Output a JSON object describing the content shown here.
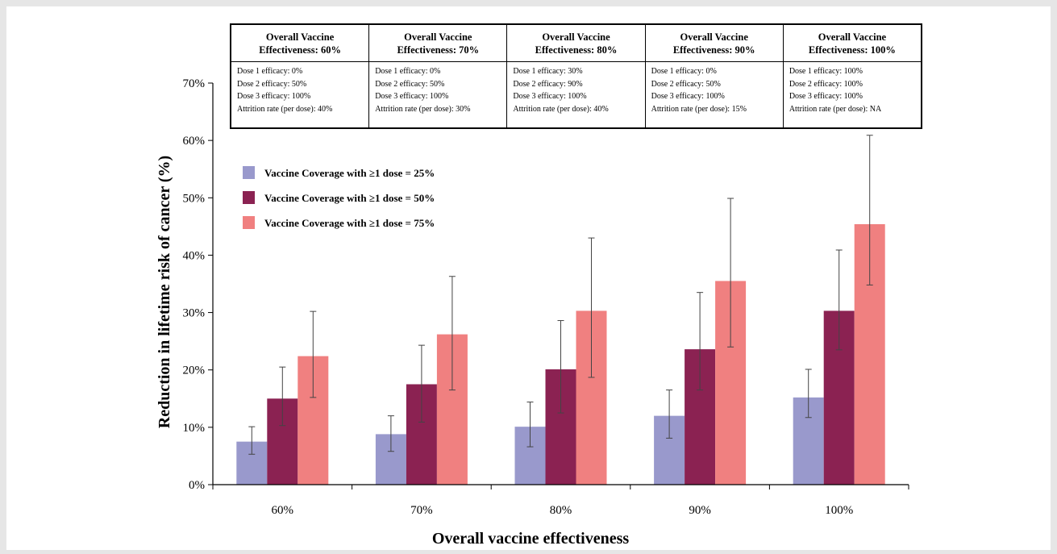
{
  "chart_data": {
    "type": "bar",
    "categories": [
      "60%",
      "70%",
      "80%",
      "90%",
      "100%"
    ],
    "xlabel": "Overall vaccine effectiveness",
    "ylabel": "Reduction in lifetime risk of cancer (%)",
    "ylim": [
      0,
      70
    ],
    "yticks": [
      "0%",
      "10%",
      "20%",
      "30%",
      "40%",
      "50%",
      "60%",
      "70%"
    ],
    "grid": false,
    "legend_placement": "upper-left",
    "series": [
      {
        "name": "Vaccine Coverage with ≥1 dose = 25%",
        "color": "#9999cc",
        "values": [
          7.5,
          8.8,
          10.1,
          12.0,
          15.2
        ],
        "err_low": [
          5.3,
          5.8,
          6.6,
          8.1,
          11.7
        ],
        "err_high": [
          10.1,
          12.0,
          14.4,
          16.5,
          20.1
        ]
      },
      {
        "name": "Vaccine Coverage with ≥1 dose = 50%",
        "color": "#8b2252",
        "values": [
          15.0,
          17.5,
          20.1,
          23.6,
          30.3
        ],
        "err_low": [
          10.3,
          10.9,
          12.5,
          16.5,
          23.5
        ],
        "err_high": [
          20.5,
          24.3,
          28.6,
          33.5,
          40.9
        ]
      },
      {
        "name": "Vaccine Coverage with ≥1 dose = 75%",
        "color": "#f08080",
        "values": [
          22.4,
          26.2,
          30.3,
          35.5,
          45.4
        ],
        "err_low": [
          15.2,
          16.5,
          18.7,
          24.0,
          34.8
        ],
        "err_high": [
          30.2,
          36.3,
          43.0,
          49.9,
          60.9
        ]
      }
    ]
  },
  "scenario_table": {
    "columns": [
      {
        "header_line1": "Overall Vaccine",
        "header_line2": "Effectiveness: 60%",
        "lines": [
          "Dose 1 efficacy: 0%",
          "Dose 2 efficacy: 50%",
          "Dose 3 efficacy: 100%",
          "Attrition rate (per dose): 40%"
        ]
      },
      {
        "header_line1": "Overall Vaccine",
        "header_line2": "Effectiveness: 70%",
        "lines": [
          "Dose 1 efficacy: 0%",
          "Dose 2 efficacy: 50%",
          "Dose 3 efficacy: 100%",
          "Attrition rate (per dose): 30%"
        ]
      },
      {
        "header_line1": "Overall Vaccine",
        "header_line2": "Effectiveness: 80%",
        "lines": [
          "Dose 1 efficacy: 30%",
          "Dose 2 efficacy: 90%",
          "Dose 3 efficacy: 100%",
          "Attrition rate (per dose): 40%"
        ]
      },
      {
        "header_line1": "Overall Vaccine",
        "header_line2": "Effectiveness: 90%",
        "lines": [
          "Dose 1 efficacy: 0%",
          "Dose 2 efficacy: 50%",
          "Dose 3 efficacy: 100%",
          "Attrition rate (per dose): 15%"
        ]
      },
      {
        "header_line1": "Overall Vaccine",
        "header_line2": "Effectiveness: 100%",
        "lines": [
          "Dose 1 efficacy: 100%",
          "Dose 2 efficacy: 100%",
          "Dose 3 efficacy: 100%",
          "Attrition rate (per dose): NA"
        ]
      }
    ]
  }
}
